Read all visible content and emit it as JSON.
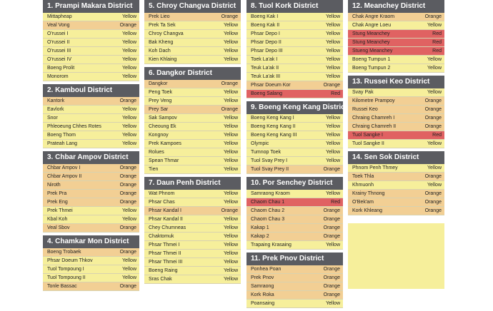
{
  "districts": [
    {
      "title": "1.  Prampi Makara District",
      "col": 1,
      "rows": [
        {
          "name": "Mittapheap",
          "status": "Yellow",
          "color": "yellow"
        },
        {
          "name": "Veal Vong",
          "status": "Orange",
          "color": "orange"
        },
        {
          "name": "O'russei I",
          "status": "Yellow",
          "color": "yellow"
        },
        {
          "name": "O'russei II",
          "status": "Yellow",
          "color": "yellow"
        },
        {
          "name": "O'russei III",
          "status": "Yellow",
          "color": "yellow"
        },
        {
          "name": "O'russei IV",
          "status": "Yellow",
          "color": "yellow"
        },
        {
          "name": "Boeng Prolit",
          "status": "Yellow",
          "color": "yellow"
        },
        {
          "name": "Monorom",
          "status": "Yellow",
          "color": "yellow"
        }
      ]
    },
    {
      "title": "2.  Kamboul District",
      "col": 1,
      "rows": [
        {
          "name": "Kantork",
          "status": "Orange",
          "color": "orange"
        },
        {
          "name": "Eavlork",
          "status": "Yellow",
          "color": "yellow"
        },
        {
          "name": "Snor",
          "status": "Yellow",
          "color": "yellow"
        },
        {
          "name": "Phleoeung Chhes Rotes",
          "status": "Yellow",
          "color": "yellow"
        },
        {
          "name": "Boeng Thom",
          "status": "Yellow",
          "color": "yellow"
        },
        {
          "name": "Prateah Lang",
          "status": "Yellow",
          "color": "yellow"
        }
      ]
    },
    {
      "title": "3.  Chbar Ampov District",
      "col": 1,
      "rows": [
        {
          "name": "Chbar Ampov I",
          "status": "Orange",
          "color": "orange"
        },
        {
          "name": "Chbar Ampov II",
          "status": "Orange",
          "color": "orange"
        },
        {
          "name": "Niroth",
          "status": "Orange",
          "color": "orange"
        },
        {
          "name": "Prek Pra",
          "status": "Orange",
          "color": "orange"
        },
        {
          "name": "Prek Eng",
          "status": "Orange",
          "color": "orange"
        },
        {
          "name": "Prek Thmei",
          "status": "Yellow",
          "color": "yellow"
        },
        {
          "name": "Kbal Koh",
          "status": "Yellow",
          "color": "yellow"
        },
        {
          "name": "Veal Sbov",
          "status": "Orange",
          "color": "orange"
        }
      ]
    },
    {
      "title": "4.  Chamkar Mon District",
      "col": 1,
      "rows": [
        {
          "name": "Boeng Trobaek",
          "status": "Orange",
          "color": "orange"
        },
        {
          "name": "Phsar Doeum Thkov",
          "status": "Yellow",
          "color": "yellow"
        },
        {
          "name": "Tuol Tompoung I",
          "status": "Yellow",
          "color": "yellow"
        },
        {
          "name": "Tuol Tompoung II",
          "status": "Yellow",
          "color": "yellow"
        },
        {
          "name": "Tonle Bassac",
          "status": "Orange",
          "color": "orange"
        }
      ]
    },
    {
      "title": "5.  Chroy Changva District",
      "col": 2,
      "rows": [
        {
          "name": "Prek Lieo",
          "status": "Orange",
          "color": "orange"
        },
        {
          "name": "Prek Ta Sek",
          "status": "Yellow",
          "color": "yellow"
        },
        {
          "name": "Chroy Changva",
          "status": "Yellow",
          "color": "yellow"
        },
        {
          "name": "Bak Kheng",
          "status": "Yellow",
          "color": "yellow"
        },
        {
          "name": "Koh Dach",
          "status": "Yellow",
          "color": "yellow"
        },
        {
          "name": "Kien Khlaing",
          "status": "Yellow",
          "color": "yellow"
        }
      ]
    },
    {
      "title": "6.  Dangkor District",
      "col": 2,
      "rows": [
        {
          "name": "Dangkor",
          "status": "Orange",
          "color": "orange"
        },
        {
          "name": "Peng Toek",
          "status": "Yellow",
          "color": "yellow"
        },
        {
          "name": "Prey Veng",
          "status": "Yellow",
          "color": "yellow"
        },
        {
          "name": "Prey Sar",
          "status": "Orange",
          "color": "orange"
        },
        {
          "name": "Sak Sampov",
          "status": "Yellow",
          "color": "yellow"
        },
        {
          "name": "Cheoung Ek",
          "status": "Yellow",
          "color": "yellow"
        },
        {
          "name": "Kongnoy",
          "status": "Yellow",
          "color": "yellow"
        },
        {
          "name": "Prek Kampoes",
          "status": "Yellow",
          "color": "yellow"
        },
        {
          "name": "Rolues",
          "status": "Yellow",
          "color": "yellow"
        },
        {
          "name": "Spean Thmar",
          "status": "Yellow",
          "color": "yellow"
        },
        {
          "name": "Tien",
          "status": "Yellow",
          "color": "yellow"
        }
      ]
    },
    {
      "title": "7.  Daun Penh District",
      "col": 2,
      "rows": [
        {
          "name": "Wat Phnom",
          "status": "Yellow",
          "color": "yellow"
        },
        {
          "name": "Phsar Chas",
          "status": "Yellow",
          "color": "yellow"
        },
        {
          "name": "Phsar Kandal I",
          "status": "Orange",
          "color": "orange"
        },
        {
          "name": "Phsar Kandal II",
          "status": "Yellow",
          "color": "yellow"
        },
        {
          "name": "Chey Chumneas",
          "status": "Yellow",
          "color": "yellow"
        },
        {
          "name": "Chaktomuk",
          "status": "Yellow",
          "color": "yellow"
        },
        {
          "name": "Phsar Thmei I",
          "status": "Yellow",
          "color": "yellow"
        },
        {
          "name": "Phsar Thmei II",
          "status": "Yellow",
          "color": "yellow"
        },
        {
          "name": "Phsar Thmei III",
          "status": "Yellow",
          "color": "yellow"
        },
        {
          "name": "Boeng Raing",
          "status": "Yellow",
          "color": "yellow"
        },
        {
          "name": "Sras Chak",
          "status": "Yellow",
          "color": "yellow"
        }
      ]
    },
    {
      "title": "8.  Tuol Kork District",
      "col": 3,
      "rows": [
        {
          "name": "Boeng Kak I",
          "status": "Yellow",
          "color": "yellow"
        },
        {
          "name": "Boeng Kak II",
          "status": "Yellow",
          "color": "yellow"
        },
        {
          "name": "Phsar Depo I",
          "status": "Yellow",
          "color": "yellow"
        },
        {
          "name": "Phsar Depo II",
          "status": "Yellow",
          "color": "yellow"
        },
        {
          "name": "Phsar Depo III",
          "status": "Yellow",
          "color": "yellow"
        },
        {
          "name": "Toek La'ak I",
          "status": "Yellow",
          "color": "yellow"
        },
        {
          "name": "Teuk La'ak II",
          "status": "Yellow",
          "color": "yellow"
        },
        {
          "name": "Teuk La'ak III",
          "status": "Yellow",
          "color": "yellow"
        },
        {
          "name": "Phsar Doeum Kor",
          "status": "Orange",
          "color": "orange"
        },
        {
          "name": "Boeng Salang",
          "status": "Red",
          "color": "red"
        }
      ]
    },
    {
      "title": "9.  Boeng Keng Kang District",
      "col": 3,
      "rows": [
        {
          "name": "Boeng Keng Kang I",
          "status": "Yellow",
          "color": "yellow"
        },
        {
          "name": "Boeng Keng Kang II",
          "status": "Yellow",
          "color": "yellow"
        },
        {
          "name": "Boeng Keng Kang III",
          "status": "Yellow",
          "color": "yellow"
        },
        {
          "name": "Olympic",
          "status": "Yellow",
          "color": "yellow"
        },
        {
          "name": "Tumnop Toek",
          "status": "Yellow",
          "color": "yellow"
        },
        {
          "name": "Tuol Svay Prey I",
          "status": "Yellow",
          "color": "yellow"
        },
        {
          "name": "Tuol Svay Prey II",
          "status": "Orange",
          "color": "orange"
        }
      ]
    },
    {
      "title": "10.  Por Senchey District",
      "col": 3,
      "rows": [
        {
          "name": "Samraong Kraom",
          "status": "Yellow",
          "color": "yellow"
        },
        {
          "name": "Chaom Chau 1",
          "status": "Red",
          "color": "red"
        },
        {
          "name": "Chaom Chau 2",
          "status": "Orange",
          "color": "orange"
        },
        {
          "name": "Chaom Chau 3",
          "status": "Orange",
          "color": "orange"
        },
        {
          "name": "Kakap 1",
          "status": "Orange",
          "color": "orange"
        },
        {
          "name": "Kakap 2",
          "status": "Orange",
          "color": "orange"
        },
        {
          "name": "Trapaing Krasaing",
          "status": "Yellow",
          "color": "yellow"
        }
      ]
    },
    {
      "title": "11.  Prek Pnov District",
      "col": 3,
      "rows": [
        {
          "name": "Ponhea Poan",
          "status": "Orange",
          "color": "orange"
        },
        {
          "name": "Prek Pnov",
          "status": "Orange",
          "color": "orange"
        },
        {
          "name": "Samraong",
          "status": "Orange",
          "color": "orange"
        },
        {
          "name": "Kork Roka",
          "status": "Orange",
          "color": "orange"
        },
        {
          "name": "Poansaing",
          "status": "Yellow",
          "color": "yellow"
        }
      ]
    },
    {
      "title": "12.  Meanchey District",
      "col": 4,
      "rows": [
        {
          "name": "Chak Angre Kraom",
          "status": "Orange",
          "color": "orange"
        },
        {
          "name": "Chak Angre Loeu",
          "status": "Yellow",
          "color": "yellow"
        },
        {
          "name": "Stung Meanchey",
          "status": "Red",
          "color": "red"
        },
        {
          "name": "Stung Meanchey",
          "status": "Red",
          "color": "red"
        },
        {
          "name": "Stueng Meanchey",
          "status": "Red",
          "color": "red"
        },
        {
          "name": "Boeng Tumpun 1",
          "status": "Yellow",
          "color": "yellow"
        },
        {
          "name": "Boeng Tumpun 2",
          "status": "Yellow",
          "color": "yellow"
        }
      ]
    },
    {
      "title": "13.  Russei Keo District",
      "col": 4,
      "rows": [
        {
          "name": "Svay Pak",
          "status": "Yellow",
          "color": "yellow"
        },
        {
          "name": "Kilometre Prampoy",
          "status": "Orange",
          "color": "orange"
        },
        {
          "name": "Russei Keo",
          "status": "Orange",
          "color": "orange"
        },
        {
          "name": "Chraing Chamreh I",
          "status": "Orange",
          "color": "orange"
        },
        {
          "name": "Chraing Chamreh II",
          "status": "Orange",
          "color": "orange"
        },
        {
          "name": "Tuol Sangke I",
          "status": "Red",
          "color": "red"
        },
        {
          "name": "Tuol Sangke II",
          "status": "Yellow",
          "color": "yellow"
        }
      ]
    },
    {
      "title": "14.  Sen Sok District",
      "col": 4,
      "rows": [
        {
          "name": "Phnom Penh Thmey",
          "status": "Yellow",
          "color": "yellow"
        },
        {
          "name": "Toek Thla",
          "status": "Orange",
          "color": "orange"
        },
        {
          "name": "Khmuonh",
          "status": "Yellow",
          "color": "yellow"
        },
        {
          "name": "Krainy Thnong",
          "status": "Orange",
          "color": "orange"
        },
        {
          "name": "O'Bek'am",
          "status": "Orange",
          "color": "orange"
        },
        {
          "name": "Kork Khleang",
          "status": "Orange",
          "color": "orange"
        }
      ]
    }
  ]
}
